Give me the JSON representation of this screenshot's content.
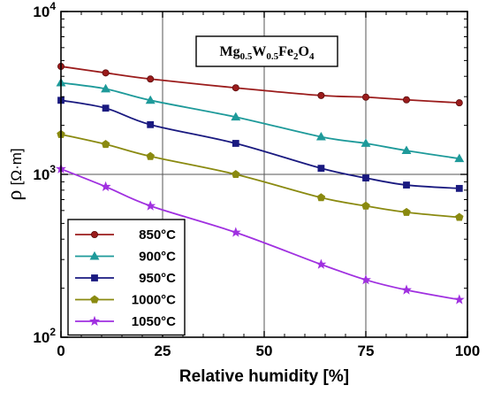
{
  "chart_data": {
    "type": "line",
    "title": "",
    "annotation": {
      "formula_parts": [
        {
          "text": "Mg",
          "sub": false
        },
        {
          "text": "0.5",
          "sub": true
        },
        {
          "text": "W",
          "sub": false
        },
        {
          "text": "0.5",
          "sub": true
        },
        {
          "text": "Fe",
          "sub": false
        },
        {
          "text": "2",
          "sub": true
        },
        {
          "text": "O",
          "sub": false
        },
        {
          "text": "4",
          "sub": true
        }
      ]
    },
    "xlabel": "Relative humidity [%]",
    "ylabel_symbol": "ρ",
    "ylabel_unit": "[Ω·m]",
    "xlim": [
      0,
      100
    ],
    "ylim": [
      100,
      10000
    ],
    "yscale": "log",
    "grid": true,
    "x_ticks": [
      {
        "value": 0,
        "label": "0"
      },
      {
        "value": 25,
        "label": "25"
      },
      {
        "value": 50,
        "label": "50"
      },
      {
        "value": 75,
        "label": "75"
      },
      {
        "value": 100,
        "label": "100"
      }
    ],
    "y_ticks": [
      {
        "value": 100,
        "base": "10",
        "exp": "2"
      },
      {
        "value": 1000,
        "base": "10",
        "exp": "3"
      },
      {
        "value": 10000,
        "base": "10",
        "exp": "4"
      }
    ],
    "legend_position": "bottom-left",
    "x": [
      0,
      11,
      22,
      43,
      64,
      75,
      85,
      98
    ],
    "series": [
      {
        "name": "850°C",
        "color": "#9b1c1c",
        "marker": "circle",
        "values": [
          4600,
          4200,
          3850,
          3400,
          3050,
          2980,
          2870,
          2750
        ]
      },
      {
        "name": "900°C",
        "color": "#1e9a9a",
        "marker": "triangle",
        "values": [
          3650,
          3350,
          2850,
          2250,
          1700,
          1550,
          1400,
          1250
        ]
      },
      {
        "name": "950°C",
        "color": "#1a1a80",
        "marker": "square",
        "values": [
          2850,
          2550,
          2020,
          1550,
          1090,
          950,
          860,
          820
        ]
      },
      {
        "name": "1000°C",
        "color": "#8a8a10",
        "marker": "pentagon",
        "values": [
          1760,
          1530,
          1290,
          1000,
          720,
          640,
          585,
          545
        ]
      },
      {
        "name": "1050°C",
        "color": "#a030e0",
        "marker": "star",
        "values": [
          1080,
          840,
          640,
          440,
          280,
          225,
          195,
          170
        ]
      }
    ]
  }
}
